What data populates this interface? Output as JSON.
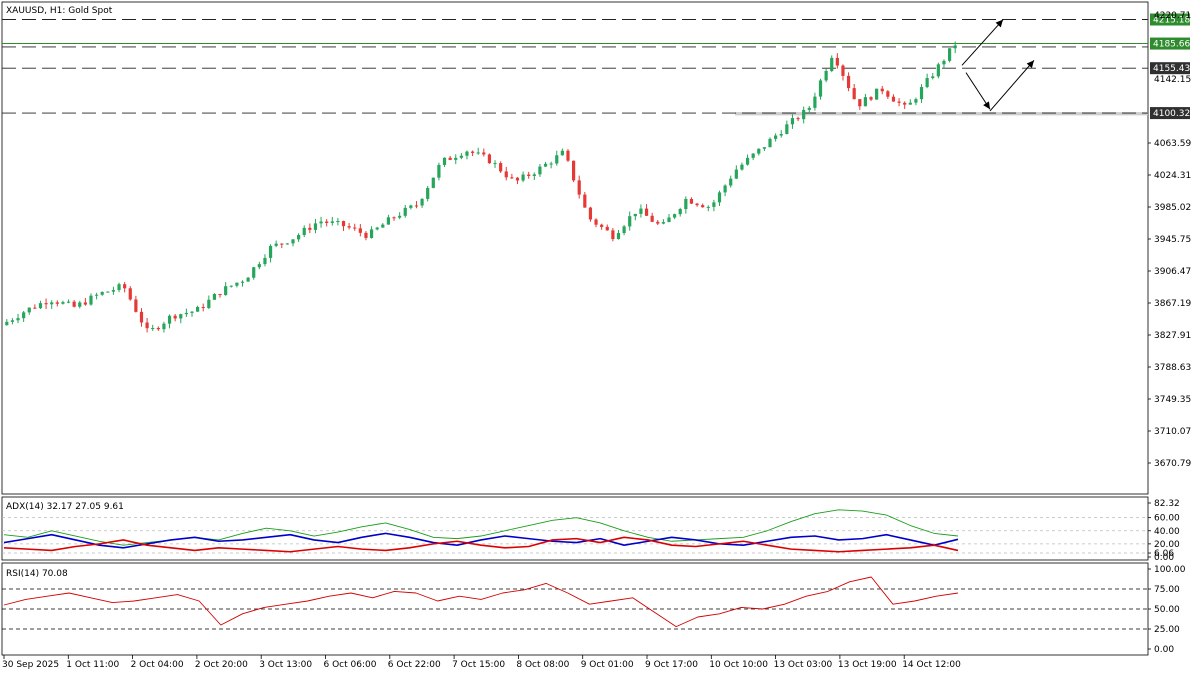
{
  "chart_data": [
    {
      "type": "candlestick",
      "title": "XAUUSD, H1:  Gold Spot",
      "y_ticks": [
        "4063.59",
        "4024.31",
        "3985.02",
        "3945.75",
        "3906.47",
        "3867.19",
        "3827.91",
        "3788.63",
        "3749.35",
        "3710.07",
        "3670.79"
      ],
      "price_tags": [
        {
          "label": "4215.18",
          "value": 4215.18,
          "style": "green"
        },
        {
          "label": "4185.66",
          "value": 4185.66,
          "style": "green"
        },
        {
          "label": "4155.43",
          "value": 4155.43,
          "style": "dark"
        },
        {
          "label": "4142.15",
          "value": 4142.15,
          "style": "plain"
        },
        {
          "label": "4100.32",
          "value": 4100.32,
          "style": "dark"
        },
        {
          "label": "4220.71",
          "value": 4220.71,
          "style": "faded"
        }
      ],
      "horizontal_levels": [
        {
          "value": 4215.18,
          "style": "dash-dark"
        },
        {
          "value": 4185.66,
          "style": "solid-green"
        },
        {
          "value": 4181.5,
          "style": "dash-dark"
        },
        {
          "value": 4155.43,
          "style": "dash-dark"
        },
        {
          "value": 4100.32,
          "style": "dash-dark"
        }
      ],
      "support_zone": {
        "from": 4097.5,
        "to": 4101.5
      },
      "bull_color": "#26a65b",
      "bear_color": "#e53935",
      "close_path": [
        [
          "30 Sep 2025",
          3840
        ],
        [
          "1 Oct 11:00",
          3858
        ],
        [
          "1 Oct 20:00",
          3872
        ],
        [
          "2 Oct 04:00",
          3862
        ],
        [
          "2 Oct 11:00",
          3878
        ],
        [
          "2 Oct 14:00",
          3888
        ],
        [
          "2 Oct 18:00",
          3830
        ],
        [
          "2 Oct 20:00",
          3852
        ],
        [
          "3 Oct 04:00",
          3858
        ],
        [
          "3 Oct 13:00",
          3882
        ],
        [
          "3 Oct 20:00",
          3898
        ],
        [
          "6 Oct 06:00",
          3935
        ],
        [
          "6 Oct 14:00",
          3948
        ],
        [
          "6 Oct 22:00",
          3968
        ],
        [
          "7 Oct 06:00",
          3962
        ],
        [
          "7 Oct 10:00",
          3950
        ],
        [
          "7 Oct 15:00",
          3972
        ],
        [
          "7 Oct 22:00",
          3988
        ],
        [
          "8 Oct 08:00",
          4040
        ],
        [
          "8 Oct 14:00",
          4055
        ],
        [
          "8 Oct 20:00",
          4042
        ],
        [
          "9 Oct 01:00",
          4015
        ],
        [
          "9 Oct 06:00",
          4032
        ],
        [
          "9 Oct 10:00",
          4052
        ],
        [
          "9 Oct 14:00",
          3972
        ],
        [
          "9 Oct 17:00",
          3950
        ],
        [
          "9 Oct 22:00",
          3982
        ],
        [
          "10 Oct 04:00",
          3960
        ],
        [
          "10 Oct 10:00",
          3995
        ],
        [
          "10 Oct 16:00",
          3985
        ],
        [
          "10 Oct 20:00",
          4030
        ],
        [
          "13 Oct 03:00",
          4055
        ],
        [
          "13 Oct 10:00",
          4082
        ],
        [
          "13 Oct 16:00",
          4105
        ],
        [
          "13 Oct 19:00",
          4175
        ],
        [
          "13 Oct 22:00",
          4110
        ],
        [
          "14 Oct 04:00",
          4130
        ],
        [
          "14 Oct 08:00",
          4105
        ],
        [
          "14 Oct 12:00",
          4145
        ],
        [
          "14 Oct 17:00",
          4185
        ]
      ],
      "arrows": [
        {
          "from": [
            4159,
            0
          ],
          "to": [
            4215,
            0
          ]
        },
        {
          "from": [
            4150,
            0
          ],
          "to": [
            4105,
            0
          ]
        },
        {
          "from": [
            4103,
            0
          ],
          "to": [
            4165,
            0
          ]
        }
      ]
    },
    {
      "type": "line",
      "title": "ADX(14) 32.17 27.05 9.61",
      "y_ticks": [
        "82.32",
        "60.00",
        "40.00",
        "20.00",
        "6.06",
        "0.00"
      ],
      "ylim": [
        0,
        82.32
      ],
      "levels": [
        60,
        40,
        20,
        6.06
      ],
      "series": [
        {
          "color": "#1a9e1a",
          "values": [
            34,
            30,
            40,
            32,
            24,
            18,
            22,
            26,
            30,
            26,
            36,
            44,
            40,
            32,
            38,
            46,
            52,
            42,
            30,
            28,
            32,
            40,
            48,
            56,
            60,
            52,
            40,
            30,
            24,
            26,
            28,
            30,
            40,
            54,
            66,
            72,
            70,
            64,
            48,
            36,
            32
          ]
        },
        {
          "color": "#0000cc",
          "values": [
            22,
            28,
            34,
            26,
            18,
            14,
            20,
            26,
            30,
            24,
            26,
            30,
            34,
            26,
            22,
            30,
            36,
            30,
            22,
            18,
            26,
            32,
            28,
            24,
            22,
            28,
            18,
            24,
            30,
            26,
            20,
            18,
            24,
            30,
            32,
            26,
            28,
            34,
            26,
            18,
            27
          ]
        },
        {
          "color": "#dd0000",
          "values": [
            14,
            12,
            10,
            16,
            20,
            26,
            18,
            14,
            10,
            14,
            12,
            10,
            8,
            12,
            16,
            12,
            10,
            14,
            20,
            24,
            18,
            14,
            16,
            26,
            28,
            22,
            30,
            26,
            18,
            16,
            20,
            24,
            18,
            12,
            10,
            8,
            10,
            12,
            14,
            18,
            10
          ]
        }
      ]
    },
    {
      "type": "line",
      "title": "RSI(14) 70.08",
      "y_ticks": [
        "100.00",
        "75.00",
        "50.00",
        "25.00",
        "0.00"
      ],
      "ylim": [
        0,
        100
      ],
      "levels": [
        75,
        50,
        25
      ],
      "series": [
        {
          "color": "#d40000",
          "values": [
            55,
            62,
            66,
            70,
            64,
            58,
            60,
            64,
            68,
            60,
            30,
            44,
            52,
            56,
            60,
            66,
            70,
            64,
            72,
            70,
            60,
            66,
            62,
            70,
            74,
            82,
            70,
            56,
            60,
            64,
            46,
            28,
            40,
            44,
            52,
            50,
            56,
            66,
            72,
            84,
            90,
            56,
            60,
            66,
            70
          ]
        }
      ]
    }
  ],
  "x_axis": {
    "labels": [
      "30 Sep 2025",
      "1 Oct 11:00",
      "2 Oct 04:00",
      "2 Oct 20:00",
      "3 Oct 13:00",
      "6 Oct 06:00",
      "6 Oct 22:00",
      "7 Oct 15:00",
      "8 Oct 08:00",
      "9 Oct 01:00",
      "9 Oct 17:00",
      "10 Oct 10:00",
      "13 Oct 03:00",
      "13 Oct 19:00",
      "14 Oct 12:00"
    ]
  }
}
